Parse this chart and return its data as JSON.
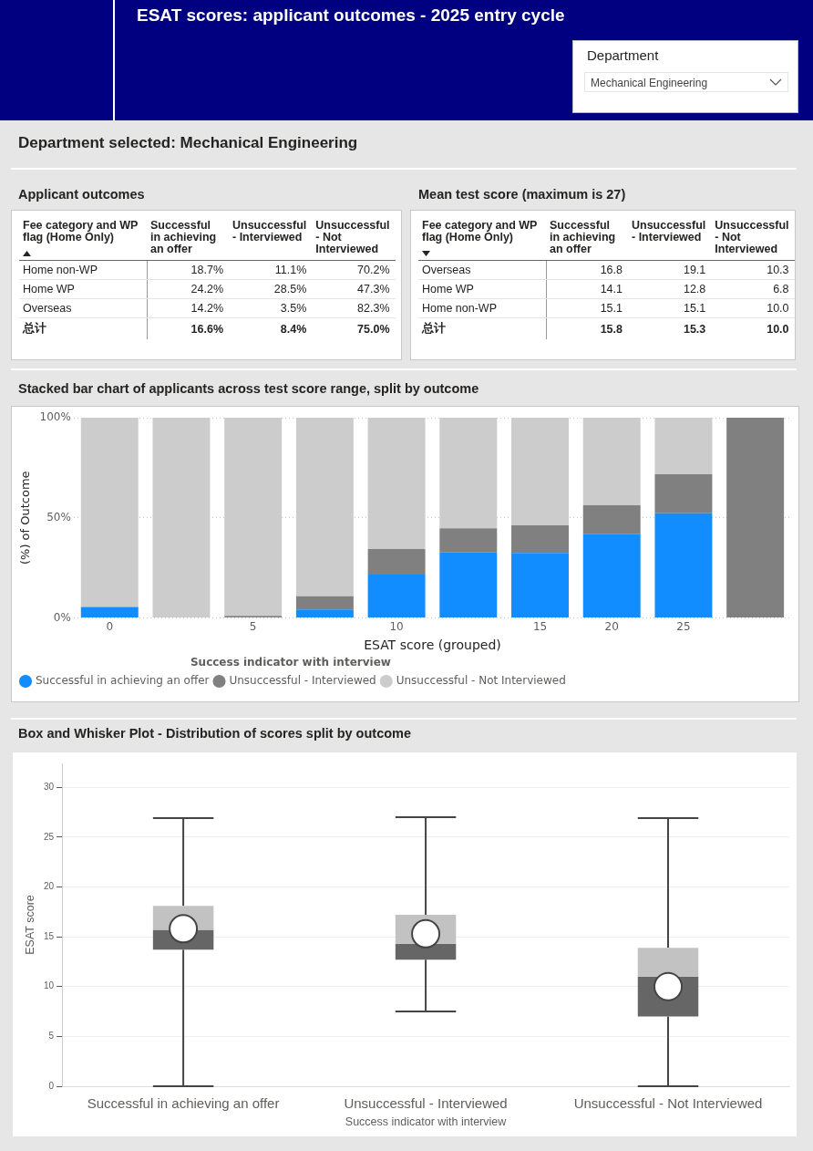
{
  "chart_data": [
    {
      "type": "other",
      "title": "ESAT scores: applicant outcomes - 2025 entry cycle",
      "subtitle": "Department selected: Mechanical Engineering",
      "annotations": [
        "Department",
        "Mechanical Engineering"
      ]
    },
    {
      "type": "other",
      "title": "Applicant outcomes",
      "ylabel": "Fee category and WP flag (Home Only)",
      "categories": [
        "Successful in achieving an offer",
        "Unsuccessful - Interviewed",
        "Unsuccessful - Not Interviewed"
      ],
      "y_categories": [
        "Home non-WP",
        "Home WP",
        "Overseas",
        "总计"
      ],
      "cell_labels": [
        [
          "18.7%",
          "11.1%",
          "70.2%"
        ],
        [
          "24.2%",
          "28.5%",
          "47.3%"
        ],
        [
          "14.2%",
          "3.5%",
          "82.3%"
        ],
        [
          "16.6%",
          "8.4%",
          "75.0%"
        ]
      ]
    },
    {
      "type": "other",
      "title": "Mean test score (maximum is 27)",
      "ylabel": "Fee category and WP flag (Home Only)",
      "categories": [
        "Successful in achieving an offer",
        "Unsuccessful - Interviewed",
        "Unsuccessful - Not Interviewed"
      ],
      "y_categories": [
        "Overseas",
        "Home WP",
        "Home non-WP",
        "总计"
      ],
      "cell_labels": [
        [
          "16.8",
          "19.1",
          "10.3"
        ],
        [
          "14.1",
          "12.8",
          "6.8"
        ],
        [
          "15.1",
          "15.1",
          "10.0"
        ],
        [
          "15.8",
          "15.3",
          "10.0"
        ]
      ]
    },
    {
      "type": "bar",
      "stacked": true,
      "title": "Stacked bar chart of applicants across test score range, split by outcome",
      "xlabel": "ESAT score (grouped)",
      "ylabel": "(%) of Outcome",
      "legend_title": "Success indicator with interview",
      "legend": "bottom",
      "grid": "y",
      "categories": [
        "0",
        null,
        "5",
        null,
        "10",
        null,
        "15",
        "20",
        "25",
        null
      ],
      "ylim": [
        0,
        100
      ],
      "yticks": [
        {
          "value": 0,
          "label": "0%"
        },
        {
          "value": 50,
          "label": "50%"
        },
        {
          "value": 100,
          "label": "100%"
        }
      ],
      "series": [
        {
          "name": "Successful in achieving an offer",
          "color": "#118dff",
          "values": [
            5.4,
            0,
            0,
            4.2,
            21.6,
            32.7,
            32.4,
            41.8,
            52.3,
            0
          ]
        },
        {
          "name": "Unsuccessful - Interviewed",
          "color": "#808080",
          "values": [
            0,
            0,
            1.0,
            6.6,
            12.8,
            12.0,
            13.8,
            14.5,
            19.4,
            100
          ]
        },
        {
          "name": "Unsuccessful - Not Interviewed",
          "color": "#cccccc",
          "values": [
            94.6,
            100,
            99.0,
            89.2,
            65.6,
            55.3,
            53.8,
            43.7,
            28.3,
            0
          ]
        }
      ]
    },
    {
      "type": "box",
      "title": "Box and Whisker Plot - Distribution of scores split by outcome",
      "xlabel": "Success indicator with interview",
      "ylabel": "ESAT score",
      "grid": "y",
      "categories": [
        "Successful in achieving an offer",
        "Unsuccessful - Interviewed",
        "Unsuccessful - Not Interviewed"
      ],
      "ylim": [
        0,
        32.4
      ],
      "yticks": [
        0,
        5,
        10,
        15,
        20,
        25,
        30
      ],
      "series": [
        {
          "color": "#666666",
          "boxes": [
            {
              "low": 0,
              "q1": 13.7,
              "median": 15.7,
              "q3": 18.1,
              "high": 26.9,
              "mean": 15.8
            },
            {
              "low": 7.5,
              "q1": 12.7,
              "median": 14.3,
              "q3": 17.2,
              "high": 27.0,
              "mean": 15.3
            },
            {
              "low": 0,
              "q1": 7.0,
              "median": 11.0,
              "q3": 13.9,
              "high": 26.9,
              "mean": 10.0
            }
          ]
        }
      ]
    }
  ]
}
